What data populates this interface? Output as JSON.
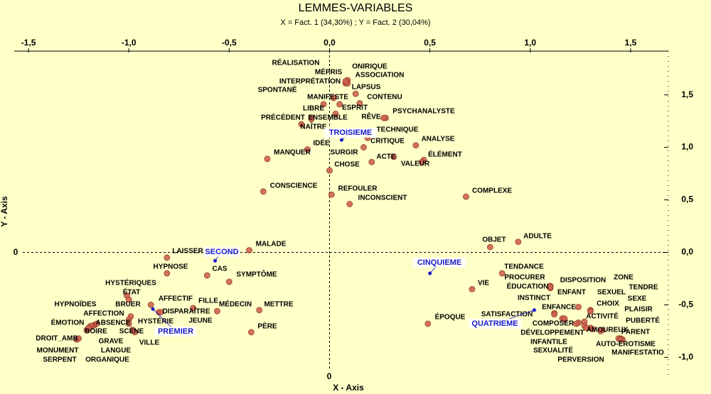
{
  "chart_data": {
    "type": "scatter",
    "title": "LEMMES-VARIABLES",
    "subtitle": "X = Fact. 1 (34,30%) ; Y = Fact. 2 (30,04%)",
    "x_label": "X - Axis",
    "y_label": "Y - Axis",
    "x_zero_label": "0",
    "y_zero_label": "0",
    "xlim": [
      -1.571,
      1.688
    ],
    "ylim": [
      -1.18,
      1.93
    ],
    "xticks": [
      {
        "value": -1.5,
        "label": "-1,5"
      },
      {
        "value": -1.0,
        "label": "-1,0"
      },
      {
        "value": -0.5,
        "label": "-0,5"
      },
      {
        "value": 0,
        "label": "0,0"
      },
      {
        "value": 0.5,
        "label": "0,5"
      },
      {
        "value": 1.0,
        "label": "1,0"
      },
      {
        "value": 1.5,
        "label": "1,5"
      }
    ],
    "yticks": [
      {
        "value": -1.0,
        "label": "-1,0"
      },
      {
        "value": -0.5,
        "label": "-0,5"
      },
      {
        "value": 0,
        "label": "0,0"
      },
      {
        "value": 0.5,
        "label": "0,5"
      },
      {
        "value": 1.0,
        "label": "1,0"
      },
      {
        "value": 1.5,
        "label": "1,5"
      }
    ],
    "series": [
      {
        "color": "#d0634f",
        "labels": [
          "RÉALISATION",
          "ONIRIQUE",
          "MÉPRIS",
          "ASSOCIATION",
          "INTERPRÉTATION",
          "LAPSUS",
          "SPONTANÉ",
          "MANIFESTE",
          "CONTENU",
          "LIBRE",
          "ESPRIT",
          "RÊVE",
          "PSYCHANALYSTE",
          "PRÉCÉDENT",
          "ENSEMBLE",
          "NAÎTRE",
          "TECHNIQUE",
          "CRITIQUE",
          "IDÉE",
          "SURGIR",
          "ANALYSE",
          "ÉLÉMENT",
          "ACTE",
          "VALEUR",
          "CHOSE",
          "MANQUER",
          "CONSCIENCE",
          "REFOULER",
          "INCONSCIENT",
          "COMPLEXE",
          "OBJET",
          "ADULTE",
          "MALADE",
          "LAISSER",
          "HYPNOSE",
          "CAS",
          "SYMPTÔME",
          "HYSTÉRIQUES",
          "ÉTAT",
          "AFFECTIF",
          "FILLE",
          "MÉDECIN",
          "METTRE",
          "HYPNOÏDES",
          "BRUER",
          "AFFECTION",
          "DISPARAÎTRE",
          "ÉMOTION",
          "ABSENCE",
          "HYSTÉRIE",
          "JEUNE",
          "BOIRE",
          "SCÈNE",
          "GRAVE",
          "VILLE",
          "DROIT_AMB",
          "MONUMENT",
          "LANGUE",
          "SERPENT",
          "ORGANIQUE",
          "PÈRE",
          "VIE",
          "TENDANCE",
          "PROCURER",
          "ÉDUCATION",
          "DISPOSITION",
          "ZONE",
          "TENDRE",
          "ENFANT",
          "SEXUEL",
          "SEXE",
          "INSTINCT",
          "ENFANCE",
          "CHOIX",
          "PLAISIR",
          "ACTIVITÉ",
          "SATISFACTION",
          "COMPOSER",
          "PUBERTÉ",
          "AMOUREUX",
          "PARENT",
          "DÉVELOPPEMENT",
          "INFANTILE",
          "AUTO-ÉROTISME",
          "SEXUALITÉ",
          "MANIFESTATIO",
          "PERVERSION",
          "ÉPOQUE"
        ],
        "x": [
          0.085,
          0.09,
          0.08,
          0.09,
          0.08,
          0.13,
          0.02,
          0.03,
          0.15,
          -0.03,
          0.05,
          0.28,
          0.27,
          -0.09,
          -0.09,
          -0.14,
          0.19,
          0.17,
          -0.11,
          0,
          0.43,
          0.47,
          0.32,
          0.46,
          0.21,
          -0.31,
          -0.33,
          0.01,
          0.1,
          0.68,
          0.8,
          0.94,
          -0.4,
          -0.81,
          -0.81,
          -0.61,
          -0.5,
          -1.01,
          -1.0,
          -0.89,
          -0.68,
          -0.56,
          -0.35,
          -1.17,
          -0.99,
          -1.0,
          -0.85,
          -1.19,
          -1.16,
          -1.0,
          -0.84,
          -1.2,
          -0.98,
          -1.18,
          -0.97,
          -1.26,
          -1.25,
          -1.19,
          -1.21,
          -1.2,
          -0.39,
          0.71,
          0.86,
          1.1,
          1.1,
          1.1,
          1.3,
          1.27,
          1.24,
          1.3,
          1.3,
          1.12,
          1.17,
          1.27,
          1.36,
          1.24,
          1.12,
          1.16,
          1.45,
          1.35,
          1.44,
          1.17,
          1.23,
          1.46,
          1.28,
          1.45,
          1.31,
          0.49
        ],
        "y": [
          1.62,
          1.64,
          1.61,
          1.61,
          1.63,
          1.51,
          1.47,
          1.32,
          1.42,
          1.41,
          1.41,
          1.28,
          1.28,
          1.28,
          1.27,
          1.22,
          1.09,
          1.0,
          0.98,
          0.78,
          1.02,
          0.88,
          0.91,
          0.86,
          0.86,
          0.89,
          0.58,
          0.55,
          0.46,
          0.53,
          0.05,
          0.1,
          0.02,
          -0.05,
          -0.2,
          -0.22,
          -0.28,
          -0.41,
          -0.45,
          -0.5,
          -0.53,
          -0.56,
          -0.55,
          -0.69,
          -0.61,
          -0.64,
          -0.57,
          -0.71,
          -0.68,
          -0.68,
          -0.57,
          -0.72,
          -0.74,
          -0.7,
          -0.76,
          -0.83,
          -0.82,
          -0.7,
          -0.74,
          -0.72,
          -0.76,
          -0.35,
          -0.2,
          -0.32,
          -0.34,
          -0.33,
          -0.55,
          -0.66,
          -0.52,
          -0.56,
          -0.72,
          -0.58,
          -0.64,
          -0.7,
          -0.74,
          -0.67,
          -0.59,
          -0.63,
          -0.82,
          -0.75,
          -0.82,
          -0.63,
          -0.68,
          -0.83,
          -0.72,
          -0.83,
          -0.73,
          -0.68
        ]
      },
      {
        "color": "#1a1acc",
        "labels": [
          "TROISIEME",
          "SECOND",
          "CINQUIEME",
          "PREMIER",
          "QUATRIEME"
        ],
        "x": [
          0.06,
          -0.57,
          0.5,
          -0.88,
          1.02
        ],
        "y": [
          1.07,
          -0.08,
          -0.2,
          -0.54,
          -0.55
        ]
      }
    ]
  }
}
